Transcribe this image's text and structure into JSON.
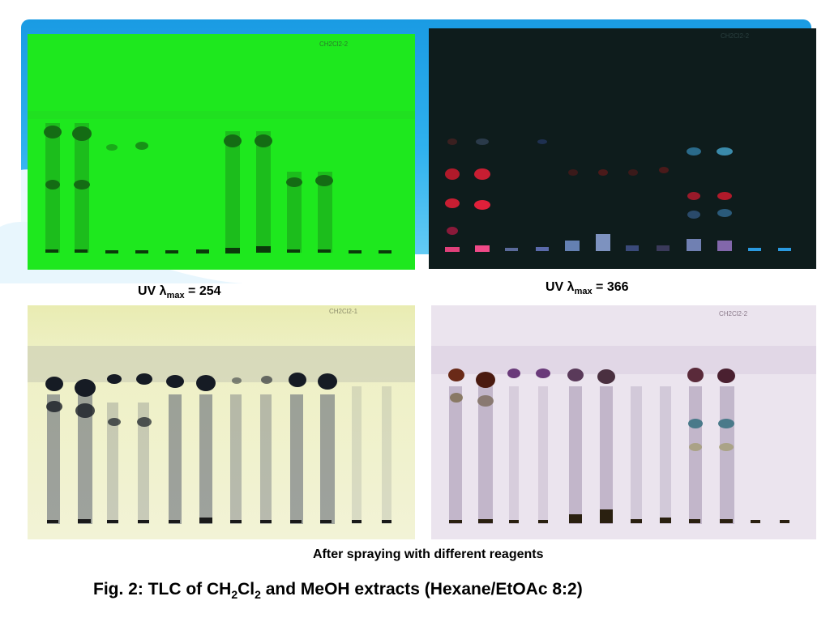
{
  "captions": {
    "uv254": {
      "prefix": "UV λ",
      "sub": "max",
      "suffix": " = 254"
    },
    "uv366": {
      "prefix": "UV λ",
      "sub": "max",
      "suffix": " = 366"
    },
    "spray": "After  spraying with different reagents"
  },
  "figure_title": {
    "p1": "Fig. 2:  TLC of CH",
    "s1": "2",
    "p2": "Cl",
    "s2": "2",
    "p3": " and MeOH extracts (Hexane/EtOAc  8:2)"
  },
  "plates": [
    {
      "id": "uv254",
      "label": "CH2Cl2-2",
      "background": "#1ee81e",
      "spot": "#116611"
    },
    {
      "id": "uv366",
      "label": "CH2Cl2-2",
      "background": "#0e1c1c",
      "spot": "#d1203a"
    },
    {
      "id": "spray1",
      "label": "CH2Cl2-1",
      "background": "#eef0c8",
      "spot": "#1a1f2a"
    },
    {
      "id": "spray2",
      "label": "CH2Cl2-2",
      "background": "#ece3ec",
      "spot": "#5a2418"
    }
  ],
  "lanes": 12
}
